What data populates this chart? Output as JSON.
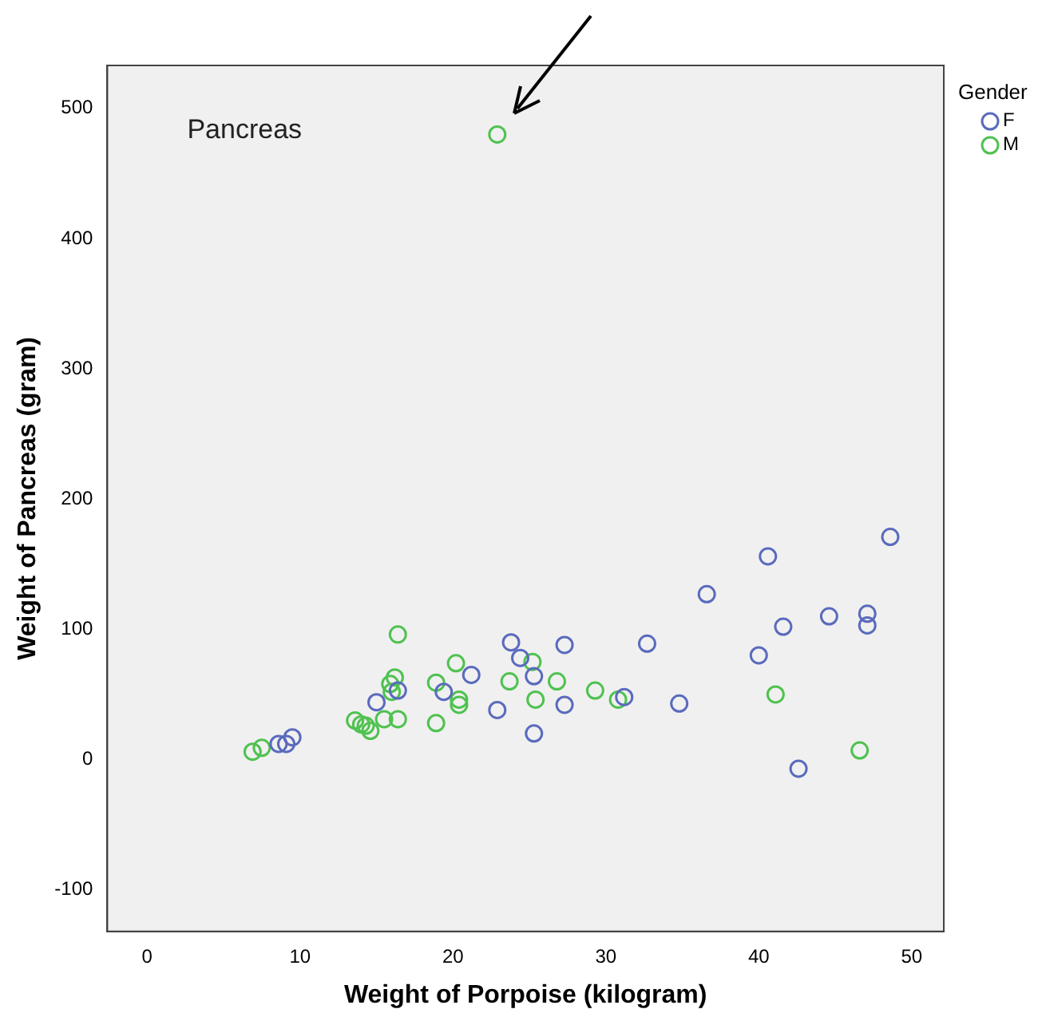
{
  "chart_data": {
    "type": "scatter",
    "xlabel": "Weight of Porpoise (kilogram)",
    "ylabel": "Weight of Pancreas (gram)",
    "legend_title": "Gender",
    "annotations": [
      "Pancreas"
    ],
    "xlim": [
      -2.6,
      52.1
    ],
    "ylim": [
      -132,
      533
    ],
    "xticks": [
      0,
      10,
      20,
      30,
      40,
      50
    ],
    "yticks": [
      -100,
      0,
      100,
      200,
      300,
      400,
      500
    ],
    "grid": false,
    "legend": "right",
    "marker": "circle",
    "series": [
      {
        "name": "F",
        "color": "#5a6bbd",
        "x": [
          8.6,
          9.1,
          9.5,
          15.0,
          16.4,
          19.4,
          21.2,
          23.8,
          24.4,
          25.3,
          27.3,
          22.9,
          25.3,
          27.3,
          32.7,
          36.6,
          40.6,
          48.6,
          41.6,
          44.6,
          47.1,
          47.1,
          40.0,
          31.2,
          34.8,
          42.6
        ],
        "values": [
          12,
          12,
          17,
          44,
          53,
          52,
          65,
          90,
          78,
          64,
          88,
          38,
          20,
          42,
          89,
          127,
          156,
          171,
          102,
          110,
          112,
          103,
          80,
          48,
          43,
          -7
        ]
      },
      {
        "name": "M",
        "color": "#4fc24f",
        "x": [
          6.9,
          7.5,
          13.6,
          14.0,
          14.3,
          14.6,
          15.5,
          16.4,
          16.4,
          16.2,
          15.9,
          16.0,
          18.9,
          18.9,
          20.2,
          20.4,
          20.4,
          23.7,
          25.2,
          25.4,
          26.8,
          29.3,
          30.8,
          41.1,
          46.6,
          22.9
        ],
        "values": [
          6,
          9,
          30,
          27,
          26,
          22,
          31,
          31,
          96,
          63,
          58,
          52,
          59,
          28,
          74,
          46,
          42,
          60,
          75,
          46,
          60,
          53,
          46,
          50,
          7,
          480
        ]
      }
    ]
  }
}
